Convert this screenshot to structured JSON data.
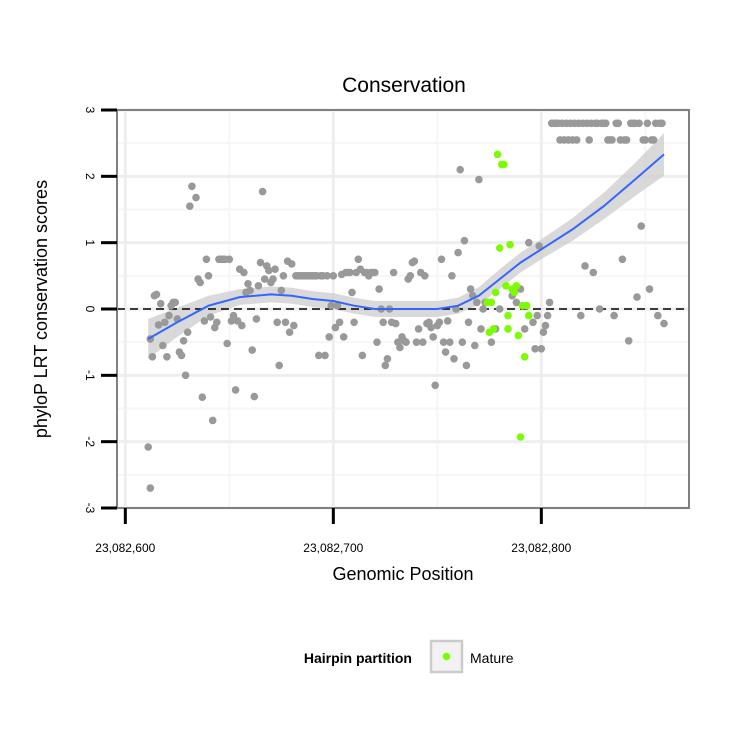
{
  "chart_data": {
    "type": "scatter",
    "title": "Conservation",
    "xlabel": "Genomic Position",
    "ylabel": "phyloP LRT conservation scores",
    "xlim": [
      23082596,
      23082871
    ],
    "ylim": [
      -3,
      3
    ],
    "x_ticks": [
      {
        "value": 23082600,
        "label": "23,082,600"
      },
      {
        "value": 23082700,
        "label": "23,082,700"
      },
      {
        "value": 23082800,
        "label": "23,082,800"
      }
    ],
    "y_ticks": [
      {
        "value": 3,
        "label": "3"
      },
      {
        "value": 2,
        "label": "2"
      },
      {
        "value": 1,
        "label": "1"
      },
      {
        "value": 0,
        "label": "0"
      },
      {
        "value": -1,
        "label": "-1"
      },
      {
        "value": -2,
        "label": "-2"
      },
      {
        "value": -3,
        "label": "-3"
      }
    ],
    "reference_line": {
      "y": 0,
      "style": "dashed"
    },
    "grid": true,
    "legend": {
      "title": "Hairpin partition",
      "position": "bottom",
      "entries": [
        {
          "label": "Mature",
          "color": "#7cfc00"
        }
      ]
    },
    "colors": {
      "other": "#999999",
      "mature": "#7cfc00",
      "smooth": "#3366ff",
      "ribbon": "#cccccc"
    },
    "series": [
      {
        "name": "",
        "color": "#999999",
        "points": [
          [
            23082611,
            -2.08
          ],
          [
            23082612,
            -2.7
          ],
          [
            23082612,
            -0.45
          ],
          [
            23082613,
            -0.72
          ],
          [
            23082614,
            0.2
          ],
          [
            23082615,
            0.22
          ],
          [
            23082616,
            -0.24
          ],
          [
            23082617,
            0.08
          ],
          [
            23082618,
            -0.55
          ],
          [
            23082619,
            -0.2
          ],
          [
            23082620,
            -0.72
          ],
          [
            23082621,
            -0.1
          ],
          [
            23082622,
            0.05
          ],
          [
            23082623,
            0.1
          ],
          [
            23082624,
            0.1
          ],
          [
            23082625,
            -0.15
          ],
          [
            23082626,
            -0.65
          ],
          [
            23082627,
            -0.7
          ],
          [
            23082628,
            -0.48
          ],
          [
            23082629,
            -1.0
          ],
          [
            23082630,
            -0.35
          ],
          [
            23082631,
            1.55
          ],
          [
            23082632,
            1.85
          ],
          [
            23082634,
            1.68
          ],
          [
            23082635,
            0.45
          ],
          [
            23082636,
            0.4
          ],
          [
            23082637,
            -1.33
          ],
          [
            23082638,
            -0.18
          ],
          [
            23082639,
            0.75
          ],
          [
            23082640,
            0.5
          ],
          [
            23082641,
            -0.12
          ],
          [
            23082642,
            -1.68
          ],
          [
            23082643,
            -0.28
          ],
          [
            23082644,
            -0.2
          ],
          [
            23082645,
            0.75
          ],
          [
            23082646,
            0.75
          ],
          [
            23082647,
            0.75
          ],
          [
            23082648,
            0.75
          ],
          [
            23082649,
            -0.52
          ],
          [
            23082650,
            0.75
          ],
          [
            23082651,
            -0.18
          ],
          [
            23082652,
            -0.1
          ],
          [
            23082653,
            -1.22
          ],
          [
            23082654,
            -0.18
          ],
          [
            23082655,
            0.6
          ],
          [
            23082656,
            -0.25
          ],
          [
            23082657,
            0.55
          ],
          [
            23082658,
            0.25
          ],
          [
            23082659,
            0.38
          ],
          [
            23082660,
            0.28
          ],
          [
            23082661,
            -0.62
          ],
          [
            23082662,
            -1.32
          ],
          [
            23082663,
            -0.15
          ],
          [
            23082664,
            0.35
          ],
          [
            23082665,
            0.7
          ],
          [
            23082666,
            1.77
          ],
          [
            23082667,
            0.45
          ],
          [
            23082668,
            0.65
          ],
          [
            23082669,
            0.58
          ],
          [
            23082670,
            0.4
          ],
          [
            23082671,
            0.45
          ],
          [
            23082672,
            0.6
          ],
          [
            23082673,
            -0.2
          ],
          [
            23082674,
            -0.85
          ],
          [
            23082675,
            0.28
          ],
          [
            23082676,
            0.5
          ],
          [
            23082677,
            -0.2
          ],
          [
            23082678,
            0.72
          ],
          [
            23082679,
            -0.35
          ],
          [
            23082680,
            0.68
          ],
          [
            23082681,
            -0.25
          ],
          [
            23082682,
            0.5
          ],
          [
            23082683,
            0.5
          ],
          [
            23082684,
            0.5
          ],
          [
            23082685,
            0.5
          ],
          [
            23082686,
            0.5
          ],
          [
            23082687,
            0.5
          ],
          [
            23082688,
            0.5
          ],
          [
            23082689,
            0.5
          ],
          [
            23082690,
            0.5
          ],
          [
            23082691,
            0.5
          ],
          [
            23082692,
            0.5
          ],
          [
            23082693,
            -0.7
          ],
          [
            23082694,
            0.5
          ],
          [
            23082695,
            0.5
          ],
          [
            23082696,
            -0.7
          ],
          [
            23082697,
            0.5
          ],
          [
            23082698,
            -0.42
          ],
          [
            23082699,
            0.05
          ],
          [
            23082700,
            0.5
          ],
          [
            23082701,
            -0.28
          ],
          [
            23082702,
            0.05
          ],
          [
            23082703,
            -0.2
          ],
          [
            23082704,
            0.52
          ],
          [
            23082705,
            -0.42
          ],
          [
            23082706,
            0.55
          ],
          [
            23082707,
            0.55
          ],
          [
            23082708,
            0.55
          ],
          [
            23082709,
            0.25
          ],
          [
            23082710,
            -0.2
          ],
          [
            23082711,
            0.55
          ],
          [
            23082712,
            0.75
          ],
          [
            23082713,
            0.6
          ],
          [
            23082714,
            -0.7
          ],
          [
            23082715,
            0.55
          ],
          [
            23082716,
            0.55
          ],
          [
            23082717,
            0.5
          ],
          [
            23082718,
            0.55
          ],
          [
            23082719,
            0.55
          ],
          [
            23082720,
            0.55
          ],
          [
            23082721,
            -0.5
          ],
          [
            23082722,
            0.3
          ],
          [
            23082723,
            0.0
          ],
          [
            23082724,
            -0.2
          ],
          [
            23082725,
            -0.85
          ],
          [
            23082726,
            -0.75
          ],
          [
            23082727,
            0.0
          ],
          [
            23082728,
            -0.2
          ],
          [
            23082729,
            0.55
          ],
          [
            23082730,
            -0.22
          ],
          [
            23082731,
            -0.5
          ],
          [
            23082732,
            -0.58
          ],
          [
            23082733,
            -0.42
          ],
          [
            23082734,
            -0.48
          ],
          [
            23082735,
            -0.5
          ],
          [
            23082736,
            0.45
          ],
          [
            23082737,
            0.5
          ],
          [
            23082738,
            0.7
          ],
          [
            23082739,
            0.72
          ],
          [
            23082740,
            -0.5
          ],
          [
            23082741,
            -0.3
          ],
          [
            23082742,
            0.55
          ],
          [
            23082743,
            -0.5
          ],
          [
            23082744,
            0.5
          ],
          [
            23082745,
            -0.22
          ],
          [
            23082746,
            -0.2
          ],
          [
            23082747,
            -0.28
          ],
          [
            23082748,
            -0.42
          ],
          [
            23082749,
            -1.15
          ],
          [
            23082750,
            -0.25
          ],
          [
            23082751,
            -0.2
          ],
          [
            23082752,
            0.75
          ],
          [
            23082753,
            -0.5
          ],
          [
            23082754,
            -0.65
          ],
          [
            23082755,
            -0.18
          ],
          [
            23082756,
            -0.5
          ],
          [
            23082757,
            0.5
          ],
          [
            23082758,
            -0.75
          ],
          [
            23082759,
            0.0
          ],
          [
            23082760,
            0.85
          ],
          [
            23082761,
            2.1
          ],
          [
            23082762,
            -0.5
          ],
          [
            23082763,
            1.03
          ],
          [
            23082764,
            -0.85
          ],
          [
            23082765,
            -0.2
          ],
          [
            23082766,
            0.3
          ],
          [
            23082767,
            0.2
          ],
          [
            23082768,
            -0.55
          ],
          [
            23082769,
            0.1
          ],
          [
            23082770,
            1.95
          ],
          [
            23082771,
            -0.3
          ],
          [
            23082772,
            0.0
          ],
          [
            23082773,
            0.1
          ],
          [
            23082774,
            0.1
          ],
          [
            23082776,
            -0.5
          ],
          [
            23082778,
            -0.3
          ],
          [
            23082780,
            0.0
          ],
          [
            23082786,
            0.2
          ],
          [
            23082788,
            0.1
          ],
          [
            23082790,
            0.3
          ],
          [
            23082792,
            -0.3
          ],
          [
            23082794,
            1.0
          ],
          [
            23082796,
            -0.2
          ],
          [
            23082797,
            -0.6
          ],
          [
            23082798,
            -0.1
          ],
          [
            23082799,
            0.95
          ],
          [
            23082800,
            -0.6
          ],
          [
            23082801,
            -0.35
          ],
          [
            23082802,
            -0.25
          ],
          [
            23082803,
            -0.1
          ],
          [
            23082804,
            0.1
          ],
          [
            23082805,
            2.8
          ],
          [
            23082806,
            2.8
          ],
          [
            23082807,
            2.8
          ],
          [
            23082808,
            2.8
          ],
          [
            23082809,
            2.55
          ],
          [
            23082810,
            2.8
          ],
          [
            23082811,
            2.55
          ],
          [
            23082812,
            2.8
          ],
          [
            23082813,
            2.55
          ],
          [
            23082814,
            2.8
          ],
          [
            23082815,
            2.55
          ],
          [
            23082816,
            2.8
          ],
          [
            23082817,
            2.55
          ],
          [
            23082818,
            2.8
          ],
          [
            23082819,
            -0.1
          ],
          [
            23082820,
            2.8
          ],
          [
            23082821,
            0.65
          ],
          [
            23082822,
            2.8
          ],
          [
            23082823,
            2.55
          ],
          [
            23082824,
            2.8
          ],
          [
            23082825,
            0.55
          ],
          [
            23082826,
            2.8
          ],
          [
            23082827,
            2.8
          ],
          [
            23082828,
            0.0
          ],
          [
            23082829,
            2.8
          ],
          [
            23082830,
            2.8
          ],
          [
            23082831,
            2.8
          ],
          [
            23082832,
            2.55
          ],
          [
            23082833,
            2.55
          ],
          [
            23082834,
            2.55
          ],
          [
            23082835,
            -0.1
          ],
          [
            23082836,
            2.8
          ],
          [
            23082837,
            2.8
          ],
          [
            23082838,
            2.55
          ],
          [
            23082839,
            0.75
          ],
          [
            23082840,
            2.55
          ],
          [
            23082841,
            2.55
          ],
          [
            23082842,
            -0.48
          ],
          [
            23082843,
            2.8
          ],
          [
            23082844,
            2.8
          ],
          [
            23082845,
            2.8
          ],
          [
            23082846,
            0.18
          ],
          [
            23082847,
            2.8
          ],
          [
            23082848,
            1.25
          ],
          [
            23082849,
            2.55
          ],
          [
            23082850,
            2.55
          ],
          [
            23082851,
            2.8
          ],
          [
            23082852,
            0.3
          ],
          [
            23082853,
            2.55
          ],
          [
            23082854,
            2.55
          ],
          [
            23082855,
            2.8
          ],
          [
            23082856,
            -0.1
          ],
          [
            23082857,
            2.8
          ],
          [
            23082858,
            2.8
          ],
          [
            23082859,
            -0.22
          ]
        ]
      },
      {
        "name": "Mature",
        "color": "#7cfc00",
        "points": [
          [
            23082774,
            0.1
          ],
          [
            23082775,
            -0.35
          ],
          [
            23082776,
            0.1
          ],
          [
            23082777,
            -0.3
          ],
          [
            23082778,
            0.25
          ],
          [
            23082779,
            2.33
          ],
          [
            23082780,
            0.92
          ],
          [
            23082781,
            2.18
          ],
          [
            23082782,
            2.18
          ],
          [
            23082783,
            0.35
          ],
          [
            23082784,
            -0.3
          ],
          [
            23082784,
            -0.1
          ],
          [
            23082785,
            0.97
          ],
          [
            23082786,
            0.3
          ],
          [
            23082787,
            0.25
          ],
          [
            23082788,
            0.35
          ],
          [
            23082789,
            -0.4
          ],
          [
            23082790,
            -1.93
          ],
          [
            23082791,
            0.05
          ],
          [
            23082792,
            -0.72
          ],
          [
            23082793,
            0.05
          ],
          [
            23082794,
            -0.1
          ]
        ]
      }
    ],
    "smooth": {
      "x": [
        23082611,
        23082625,
        23082640,
        23082655,
        23082670,
        23082680,
        23082690,
        23082700,
        23082710,
        23082720,
        23082730,
        23082740,
        23082750,
        23082760,
        23082770,
        23082780,
        23082790,
        23082800,
        23082815,
        23082830,
        23082845,
        23082859
      ],
      "y": [
        -0.45,
        -0.2,
        0.05,
        0.18,
        0.22,
        0.2,
        0.15,
        0.12,
        0.05,
        0.0,
        0.0,
        0.0,
        0.0,
        0.05,
        0.2,
        0.45,
        0.7,
        0.9,
        1.2,
        1.55,
        1.95,
        2.33
      ],
      "ci": [
        0.3,
        0.22,
        0.15,
        0.12,
        0.12,
        0.12,
        0.12,
        0.12,
        0.12,
        0.12,
        0.12,
        0.12,
        0.12,
        0.12,
        0.13,
        0.15,
        0.15,
        0.15,
        0.17,
        0.2,
        0.25,
        0.32
      ]
    }
  }
}
